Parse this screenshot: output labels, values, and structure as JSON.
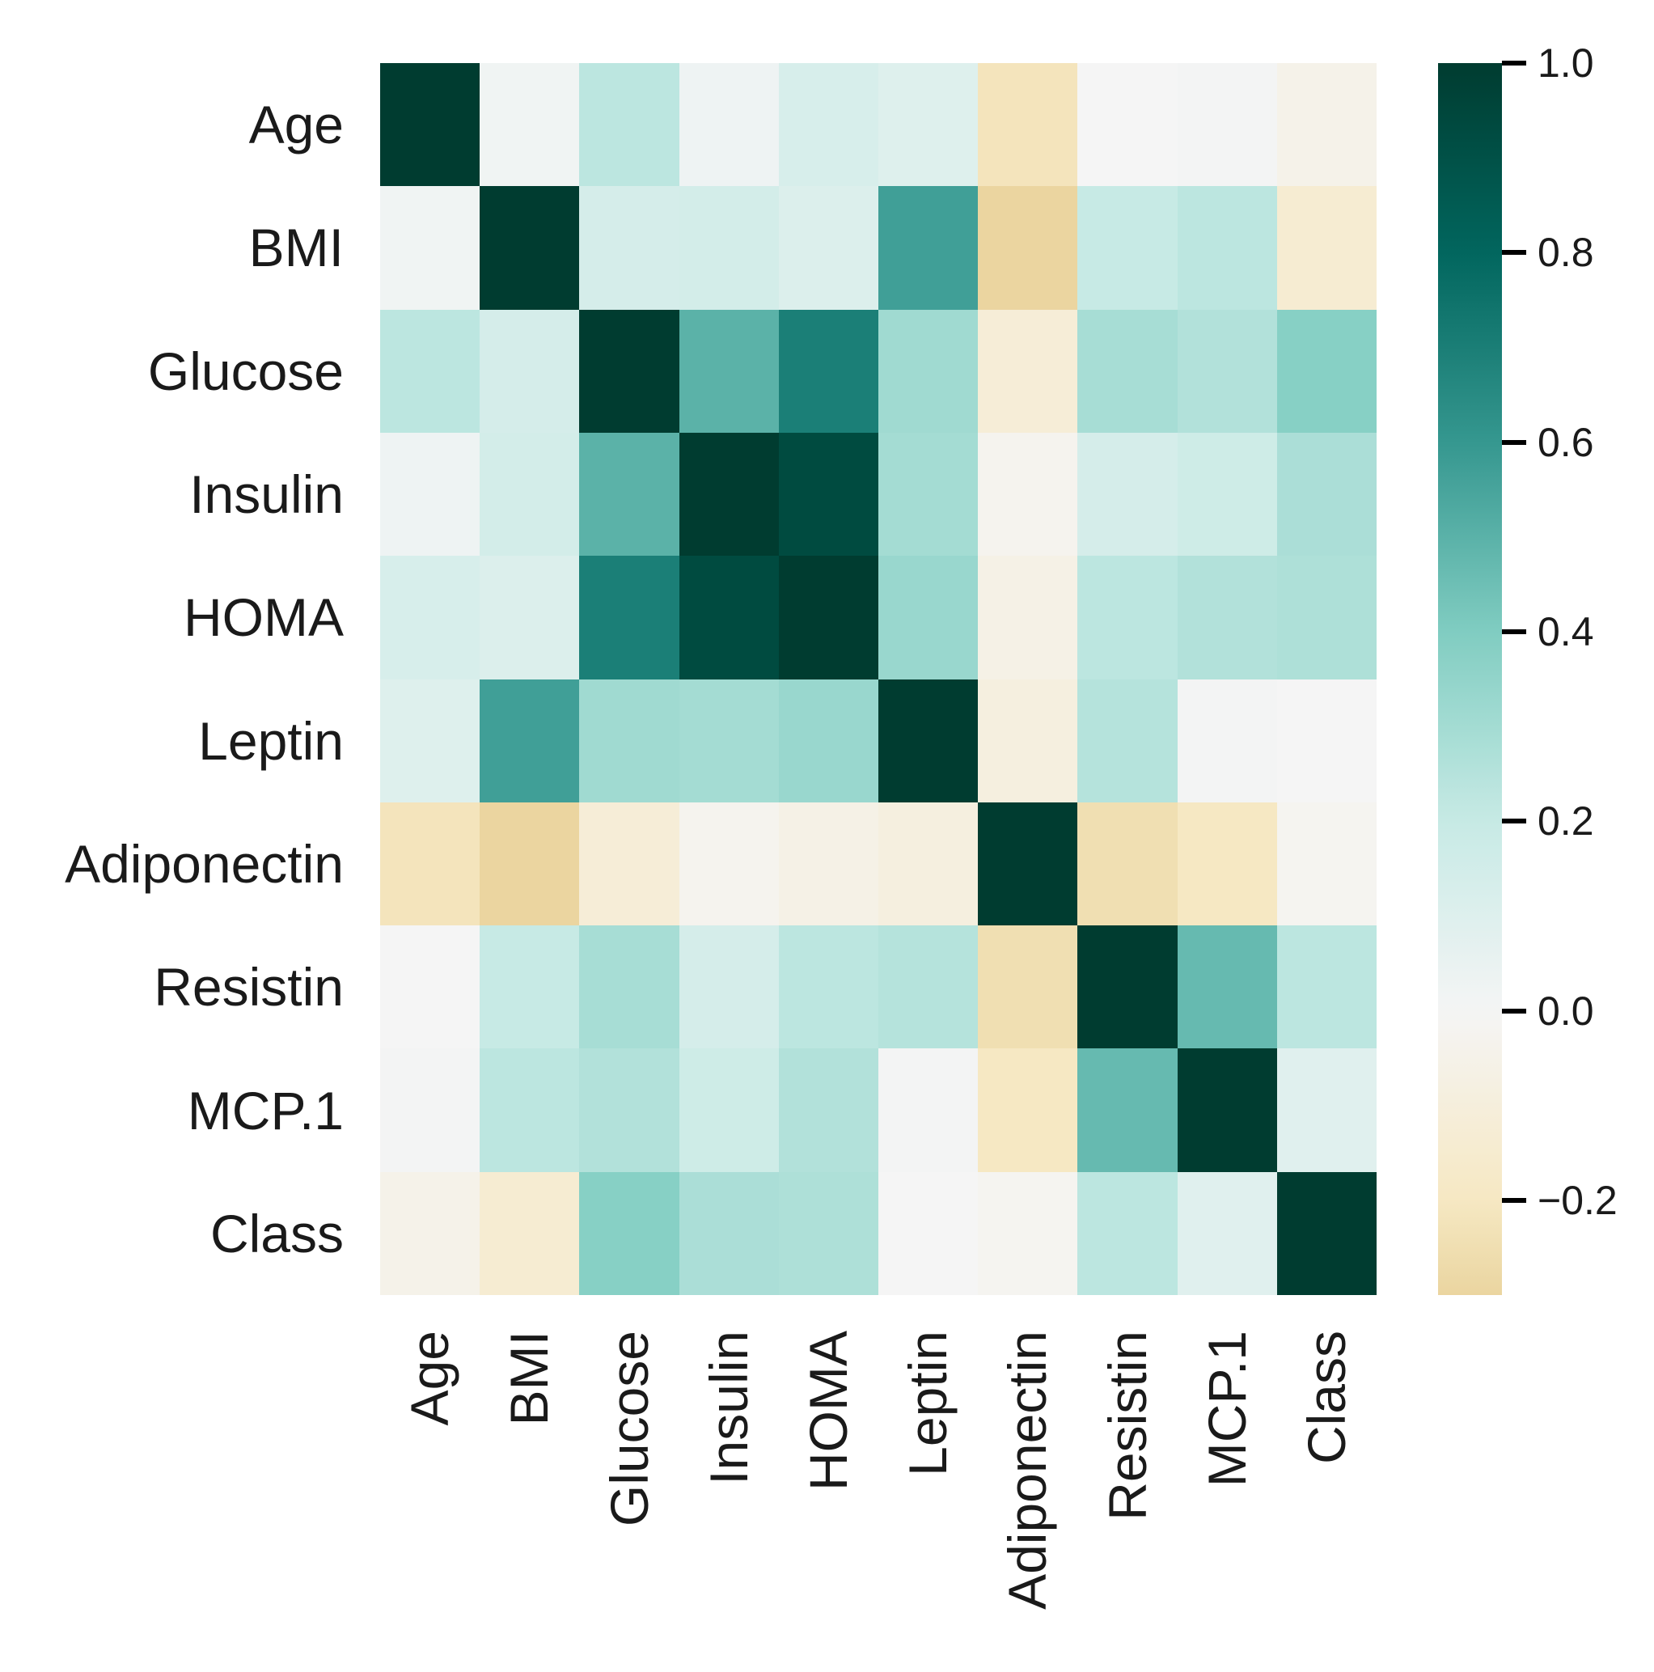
{
  "figure": {
    "background": "#ffffff",
    "text_color": "#1a1a1a"
  },
  "chart_data": {
    "type": "heatmap",
    "title": "",
    "xlabel": "",
    "ylabel": "",
    "categories": [
      "Age",
      "BMI",
      "Glucose",
      "Insulin",
      "HOMA",
      "Leptin",
      "Adiponectin",
      "Resistin",
      "MCP.1",
      "Class"
    ],
    "matrix": [
      [
        1.0,
        0.02,
        0.23,
        0.03,
        0.13,
        0.1,
        -0.22,
        0.0,
        0.01,
        -0.05
      ],
      [
        0.02,
        1.0,
        0.14,
        0.15,
        0.11,
        0.57,
        -0.3,
        0.2,
        0.23,
        -0.14
      ],
      [
        0.23,
        0.14,
        1.0,
        0.5,
        0.7,
        0.31,
        -0.12,
        0.29,
        0.26,
        0.38
      ],
      [
        0.03,
        0.15,
        0.5,
        1.0,
        0.93,
        0.3,
        -0.03,
        0.14,
        0.17,
        0.28
      ],
      [
        0.13,
        0.11,
        0.7,
        0.93,
        1.0,
        0.33,
        -0.06,
        0.23,
        0.26,
        0.27
      ],
      [
        0.1,
        0.57,
        0.31,
        0.3,
        0.33,
        1.0,
        -0.09,
        0.25,
        0.01,
        0.0
      ],
      [
        -0.22,
        -0.3,
        -0.12,
        -0.03,
        -0.06,
        -0.09,
        1.0,
        -0.25,
        -0.2,
        -0.02
      ],
      [
        0.0,
        0.2,
        0.29,
        0.14,
        0.23,
        0.25,
        -0.25,
        1.0,
        0.47,
        0.23
      ],
      [
        0.01,
        0.23,
        0.26,
        0.17,
        0.26,
        0.01,
        -0.2,
        0.47,
        1.0,
        0.09
      ],
      [
        -0.05,
        -0.14,
        0.38,
        0.28,
        0.27,
        0.0,
        -0.02,
        0.23,
        0.09,
        1.0
      ]
    ],
    "colormap": {
      "name": "BrBG",
      "domain": [
        -1,
        1
      ],
      "anchors": [
        "#543005",
        "#8c510a",
        "#bf812d",
        "#dfc27d",
        "#f6e8c3",
        "#f5f5f5",
        "#c7eae5",
        "#80cdc1",
        "#35978f",
        "#01665e",
        "#003c30"
      ]
    },
    "colorbar": {
      "position": "right",
      "vmax": 1.0,
      "vmin": -0.3,
      "tick_values": [
        1.0,
        0.8,
        0.6,
        0.4,
        0.2,
        0.0,
        -0.2
      ],
      "tick_labels": [
        "1.0",
        "0.8",
        "0.6",
        "0.4",
        "0.2",
        "0.0",
        "−0.2"
      ]
    },
    "grid": false
  }
}
